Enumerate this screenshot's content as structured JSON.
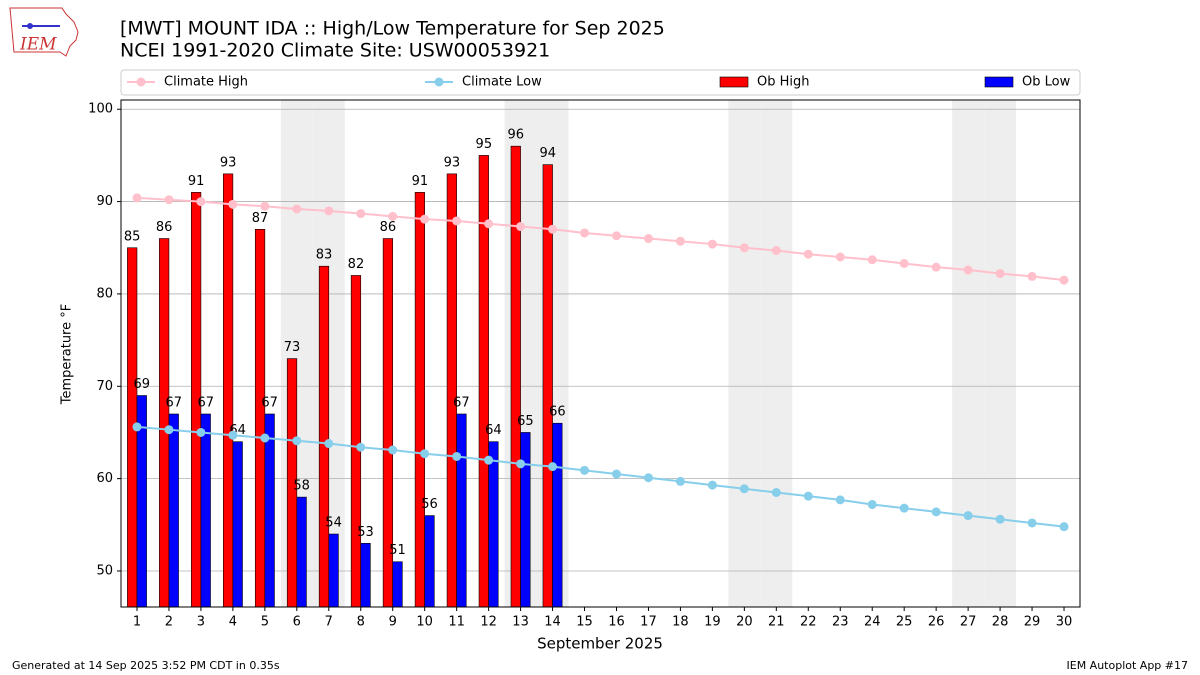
{
  "logo": "IEM",
  "footer_left": "Generated at 14 Sep 2025 3:52 PM CDT in 0.35s",
  "footer_right": "IEM Autoplot App #17",
  "chart_data": {
    "type": "bar",
    "title": "[MWT] MOUNT IDA :: High/Low Temperature for Sep 2025",
    "subtitle": "NCEI 1991-2020 Climate Site: USW00053921",
    "x_label": "September 2025",
    "y_label": "Temperature °F",
    "x": [
      1,
      2,
      3,
      4,
      5,
      6,
      7,
      8,
      9,
      10,
      11,
      12,
      13,
      14,
      15,
      16,
      17,
      18,
      19,
      20,
      21,
      22,
      23,
      24,
      25,
      26,
      27,
      28,
      29,
      30
    ],
    "xlim": [
      0.5,
      30.5
    ],
    "xticks": [
      1,
      2,
      3,
      4,
      5,
      6,
      7,
      8,
      9,
      10,
      11,
      12,
      13,
      14,
      15,
      16,
      17,
      18,
      19,
      20,
      21,
      22,
      23,
      24,
      25,
      26,
      27,
      28,
      29,
      30
    ],
    "ylim": [
      46.1,
      101
    ],
    "yticks": [
      50,
      60,
      70,
      80,
      90,
      100
    ],
    "grid": true,
    "legend": "top",
    "weekend_days": [
      6,
      7,
      13,
      14,
      20,
      21,
      27,
      28
    ],
    "weekend_color": "#eeeeee",
    "series": [
      {
        "name": "Climate High",
        "type": "line",
        "color": "#ffc0cb",
        "values": [
          90.4,
          90.2,
          90.0,
          89.7,
          89.5,
          89.2,
          89.0,
          88.7,
          88.4,
          88.1,
          87.9,
          87.6,
          87.3,
          87.0,
          86.6,
          86.3,
          86.0,
          85.7,
          85.4,
          85.0,
          84.7,
          84.3,
          84.0,
          83.7,
          83.3,
          82.9,
          82.6,
          82.2,
          81.9,
          81.5
        ]
      },
      {
        "name": "Climate Low",
        "type": "line",
        "color": "#87ceeb",
        "values": [
          65.6,
          65.3,
          65.0,
          64.7,
          64.4,
          64.1,
          63.8,
          63.4,
          63.1,
          62.7,
          62.4,
          62.0,
          61.6,
          61.3,
          60.9,
          60.5,
          60.1,
          59.7,
          59.3,
          58.9,
          58.5,
          58.1,
          57.7,
          57.2,
          56.8,
          56.4,
          56.0,
          55.6,
          55.2,
          54.8
        ]
      },
      {
        "name": "Ob High",
        "type": "bar",
        "color": "#ff0000",
        "values": [
          85,
          86,
          91,
          93,
          87,
          73,
          83,
          82,
          86,
          91,
          93,
          95,
          96,
          94,
          null,
          null,
          null,
          null,
          null,
          null,
          null,
          null,
          null,
          null,
          null,
          null,
          null,
          null,
          null,
          null
        ]
      },
      {
        "name": "Ob Low",
        "type": "bar",
        "color": "#0000ff",
        "values": [
          69,
          67,
          67,
          64,
          67,
          58,
          54,
          53,
          51,
          56,
          67,
          64,
          65,
          66,
          null,
          null,
          null,
          null,
          null,
          null,
          null,
          null,
          null,
          null,
          null,
          null,
          null,
          null,
          null,
          null
        ]
      }
    ]
  }
}
